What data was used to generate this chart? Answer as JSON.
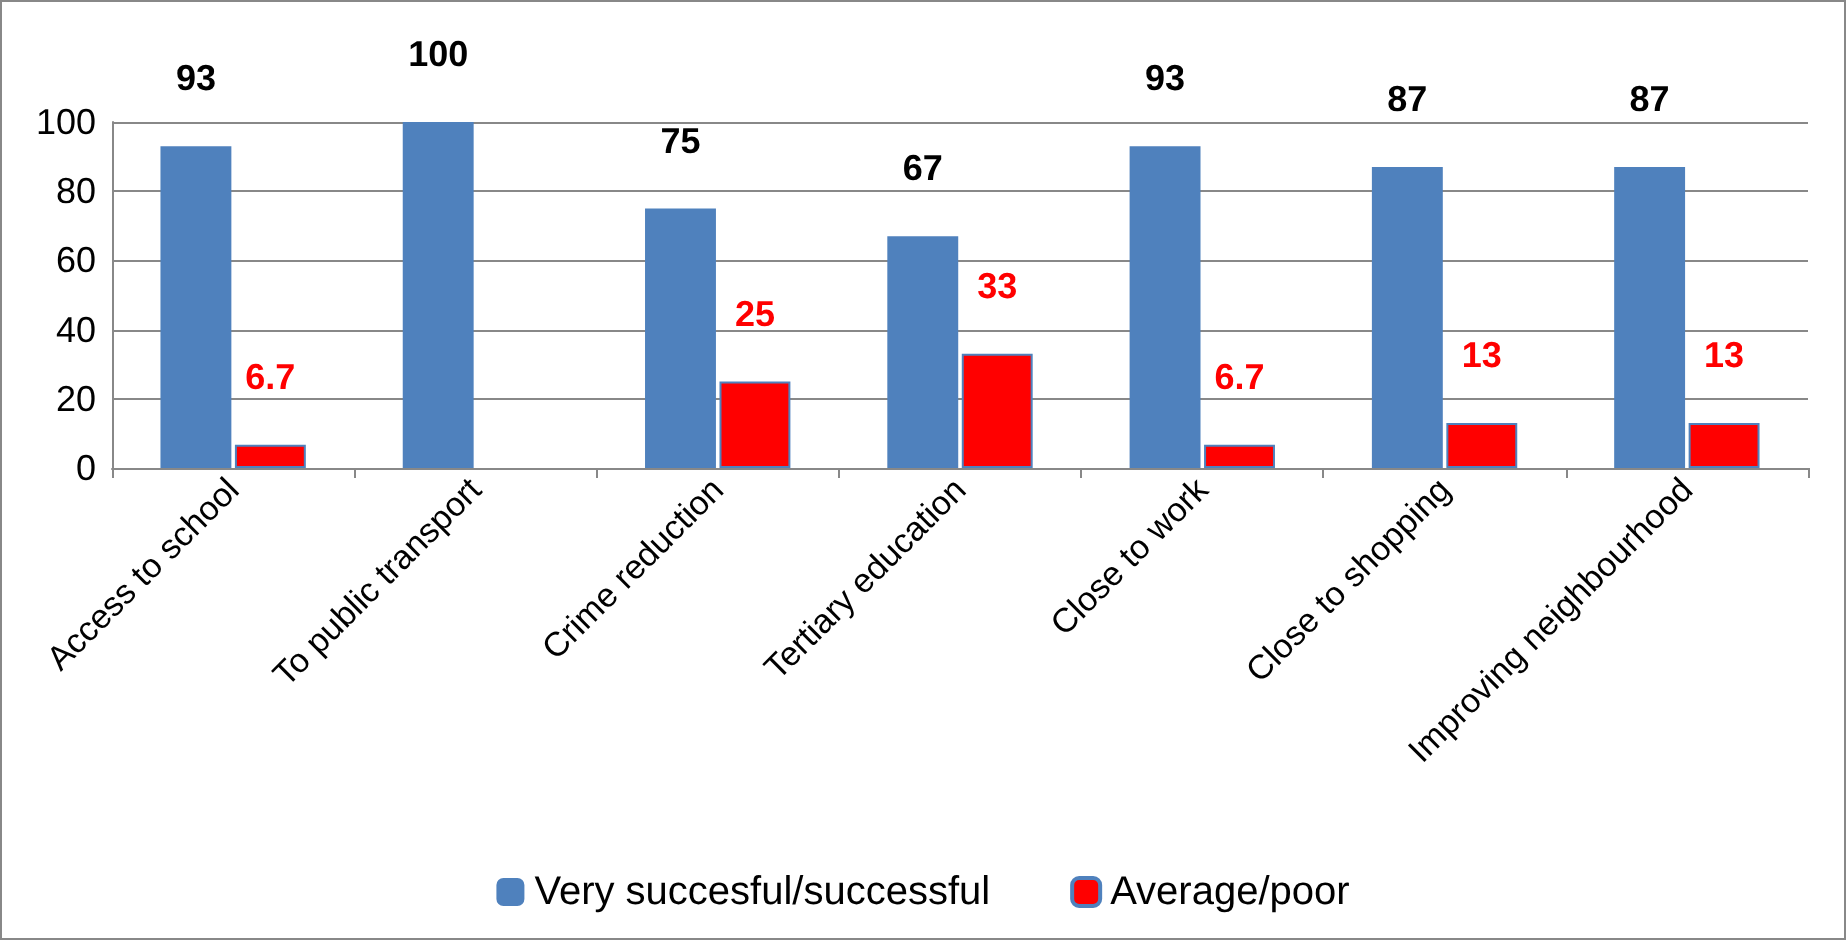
{
  "chart_data": {
    "type": "bar",
    "categories": [
      "Access to school",
      "To public transport",
      "Crime reduction",
      "Tertiary education",
      "Close to work",
      "Close to shopping",
      "Improving neighbourhood"
    ],
    "series": [
      {
        "name": "Very succesful/successful",
        "color": "#4f81bd",
        "values": [
          93,
          100,
          75,
          67,
          93,
          87,
          87
        ]
      },
      {
        "name": "Average/poor",
        "color": "#ff0000",
        "values": [
          6.7,
          null,
          25,
          33,
          6.7,
          13,
          13
        ]
      }
    ],
    "ylim": [
      0,
      100
    ],
    "yticks": [
      0,
      20,
      40,
      60,
      80,
      100
    ],
    "grid": "y",
    "legend": "bottom",
    "data_labels": true
  }
}
